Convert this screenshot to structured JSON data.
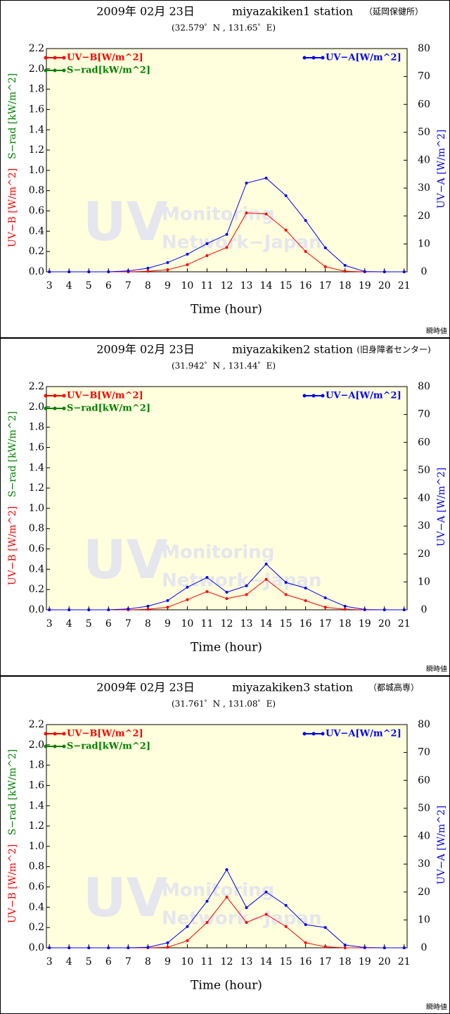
{
  "chart_data": [
    {
      "type": "line",
      "date": "2009年 02月 23日",
      "station": "miyazakiken1 station",
      "site": "（延岡保健所）",
      "coords": "(32.579゜N , 131.65゜E)",
      "xlabel": "Time (hour)",
      "ylabels": [
        "UV−B [W/m^2]",
        "S−rad [kW/m^2]"
      ],
      "y2label": "UV−A [W/m^2]",
      "x": [
        3,
        4,
        5,
        6,
        7,
        8,
        9,
        10,
        11,
        12,
        13,
        14,
        15,
        16,
        17,
        18,
        19,
        20,
        21
      ],
      "xlim": [
        2.85,
        21.15
      ],
      "ylim": [
        0,
        2.2
      ],
      "yticks": [
        {
          "value": 0,
          "label": "0.0"
        },
        0.2,
        0.4,
        0.6,
        0.8,
        {
          "value": 1,
          "label": "1.0"
        },
        1.2,
        1.4,
        1.6,
        1.8,
        {
          "value": 2,
          "label": "2.0"
        },
        2.2
      ],
      "y2lim": [
        0,
        80
      ],
      "y2ticks": [
        0,
        10,
        20,
        30,
        40,
        50,
        60,
        70,
        80
      ],
      "series": [
        {
          "name": "UV−B[W/m^2]",
          "color": "#ff0000",
          "values": [
            0,
            0,
            0,
            0,
            0,
            0.005,
            0.02,
            0.07,
            0.16,
            0.24,
            0.58,
            0.57,
            0.41,
            0.2,
            0.05,
            0.005,
            0,
            0,
            0
          ]
        },
        {
          "name": "S−rad[kW/m^2]",
          "color": "#008000",
          "values": [
            null,
            null,
            null,
            null,
            null,
            null,
            null,
            null,
            null,
            null,
            null,
            null,
            null,
            null,
            null,
            null,
            null,
            null,
            null
          ]
        },
        {
          "name": "UV−A[W/m^2]",
          "color": "#0000ff",
          "axis": "y2",
          "values": [
            0,
            0,
            0,
            0,
            0.3,
            1.3,
            3.3,
            6.3,
            10.1,
            13.4,
            31.8,
            33.6,
            27.3,
            18.4,
            8.6,
            2.3,
            0.1,
            0,
            0
          ]
        }
      ]
    },
    {
      "type": "line",
      "date": "2009年 02月 23日",
      "station": "miyazakiken2 station",
      "site": "(旧身障者センター)",
      "coords": "(31.942゜N , 131.44゜E)",
      "xlabel": "Time (hour)",
      "ylabels": [
        "UV−B [W/m^2]",
        "S−rad [kW/m^2]"
      ],
      "y2label": "UV−A [W/m^2]",
      "x": [
        3,
        4,
        5,
        6,
        7,
        8,
        9,
        10,
        11,
        12,
        13,
        14,
        15,
        16,
        17,
        18,
        19,
        20,
        21
      ],
      "xlim": [
        2.85,
        21.15
      ],
      "ylim": [
        0,
        2.2
      ],
      "yticks": [
        {
          "value": 0,
          "label": "0.0"
        },
        0.2,
        0.4,
        0.6,
        0.8,
        {
          "value": 1,
          "label": "1.0"
        },
        1.2,
        1.4,
        1.6,
        1.8,
        {
          "value": 2,
          "label": "2.0"
        },
        2.2
      ],
      "y2lim": [
        0,
        80
      ],
      "y2ticks": [
        0,
        10,
        20,
        30,
        40,
        50,
        60,
        70,
        80
      ],
      "series": [
        {
          "name": "UV−B[W/m^2]",
          "color": "#ff0000",
          "values": [
            0,
            0,
            0,
            0,
            0,
            0.005,
            0.025,
            0.1,
            0.18,
            0.11,
            0.15,
            0.3,
            0.15,
            0.09,
            0.025,
            0.005,
            0,
            0,
            0
          ]
        },
        {
          "name": "S−rad[kW/m^2]",
          "color": "#008000",
          "values": [
            null,
            null,
            null,
            null,
            null,
            null,
            null,
            null,
            null,
            null,
            null,
            null,
            null,
            null,
            null,
            null,
            null,
            null,
            null
          ]
        },
        {
          "name": "UV−A[W/m^2]",
          "color": "#0000ff",
          "axis": "y2",
          "values": [
            0,
            0,
            0,
            0,
            0.3,
            1.3,
            3.3,
            8.1,
            11.6,
            6.3,
            8.6,
            16.4,
            9.8,
            7.8,
            4.3,
            1.3,
            0.1,
            0,
            0
          ]
        }
      ]
    },
    {
      "type": "line",
      "date": "2009年 02月 23日",
      "station": "miyazakiken3 station",
      "site": "（都城高専）",
      "coords": "(31.761゜N , 131.08゜E)",
      "xlabel": "Time (hour)",
      "ylabels": [
        "UV−B [W/m^2]",
        "S−rad [kW/m^2]"
      ],
      "y2label": "UV−A [W/m^2]",
      "x": [
        3,
        4,
        5,
        6,
        7,
        8,
        9,
        10,
        11,
        12,
        13,
        14,
        15,
        16,
        17,
        18,
        19,
        20,
        21
      ],
      "xlim": [
        2.85,
        21.15
      ],
      "ylim": [
        0,
        2.2
      ],
      "yticks": [
        {
          "value": 0,
          "label": "0.0"
        },
        0.2,
        0.4,
        0.6,
        0.8,
        {
          "value": 1,
          "label": "1.0"
        },
        1.2,
        1.4,
        1.6,
        1.8,
        {
          "value": 2,
          "label": "2.0"
        },
        2.2
      ],
      "y2lim": [
        0,
        80
      ],
      "y2ticks": [
        0,
        10,
        20,
        30,
        40,
        50,
        60,
        70,
        80
      ],
      "series": [
        {
          "name": "UV−B[W/m^2]",
          "color": "#ff0000",
          "values": [
            0,
            0,
            0,
            0,
            0,
            0,
            0.005,
            0.07,
            0.25,
            0.5,
            0.25,
            0.33,
            0.21,
            0.05,
            0.01,
            0,
            0,
            0,
            0
          ]
        },
        {
          "name": "S−rad[kW/m^2]",
          "color": "#008000",
          "values": [
            null,
            null,
            null,
            null,
            null,
            null,
            null,
            null,
            null,
            null,
            null,
            null,
            null,
            null,
            null,
            null,
            null,
            null,
            null
          ]
        },
        {
          "name": "UV−A[W/m^2]",
          "color": "#0000ff",
          "axis": "y2",
          "values": [
            0,
            0,
            0,
            0,
            0,
            0.2,
            1.8,
            7.6,
            16.7,
            28,
            14.4,
            20,
            15.2,
            8.3,
            7.3,
            1,
            0.1,
            0,
            0
          ]
        }
      ]
    }
  ],
  "watermark": {
    "big": "UV",
    "line1": "Monitoring",
    "line2": "Network−Japan"
  },
  "note": "瞬時値"
}
